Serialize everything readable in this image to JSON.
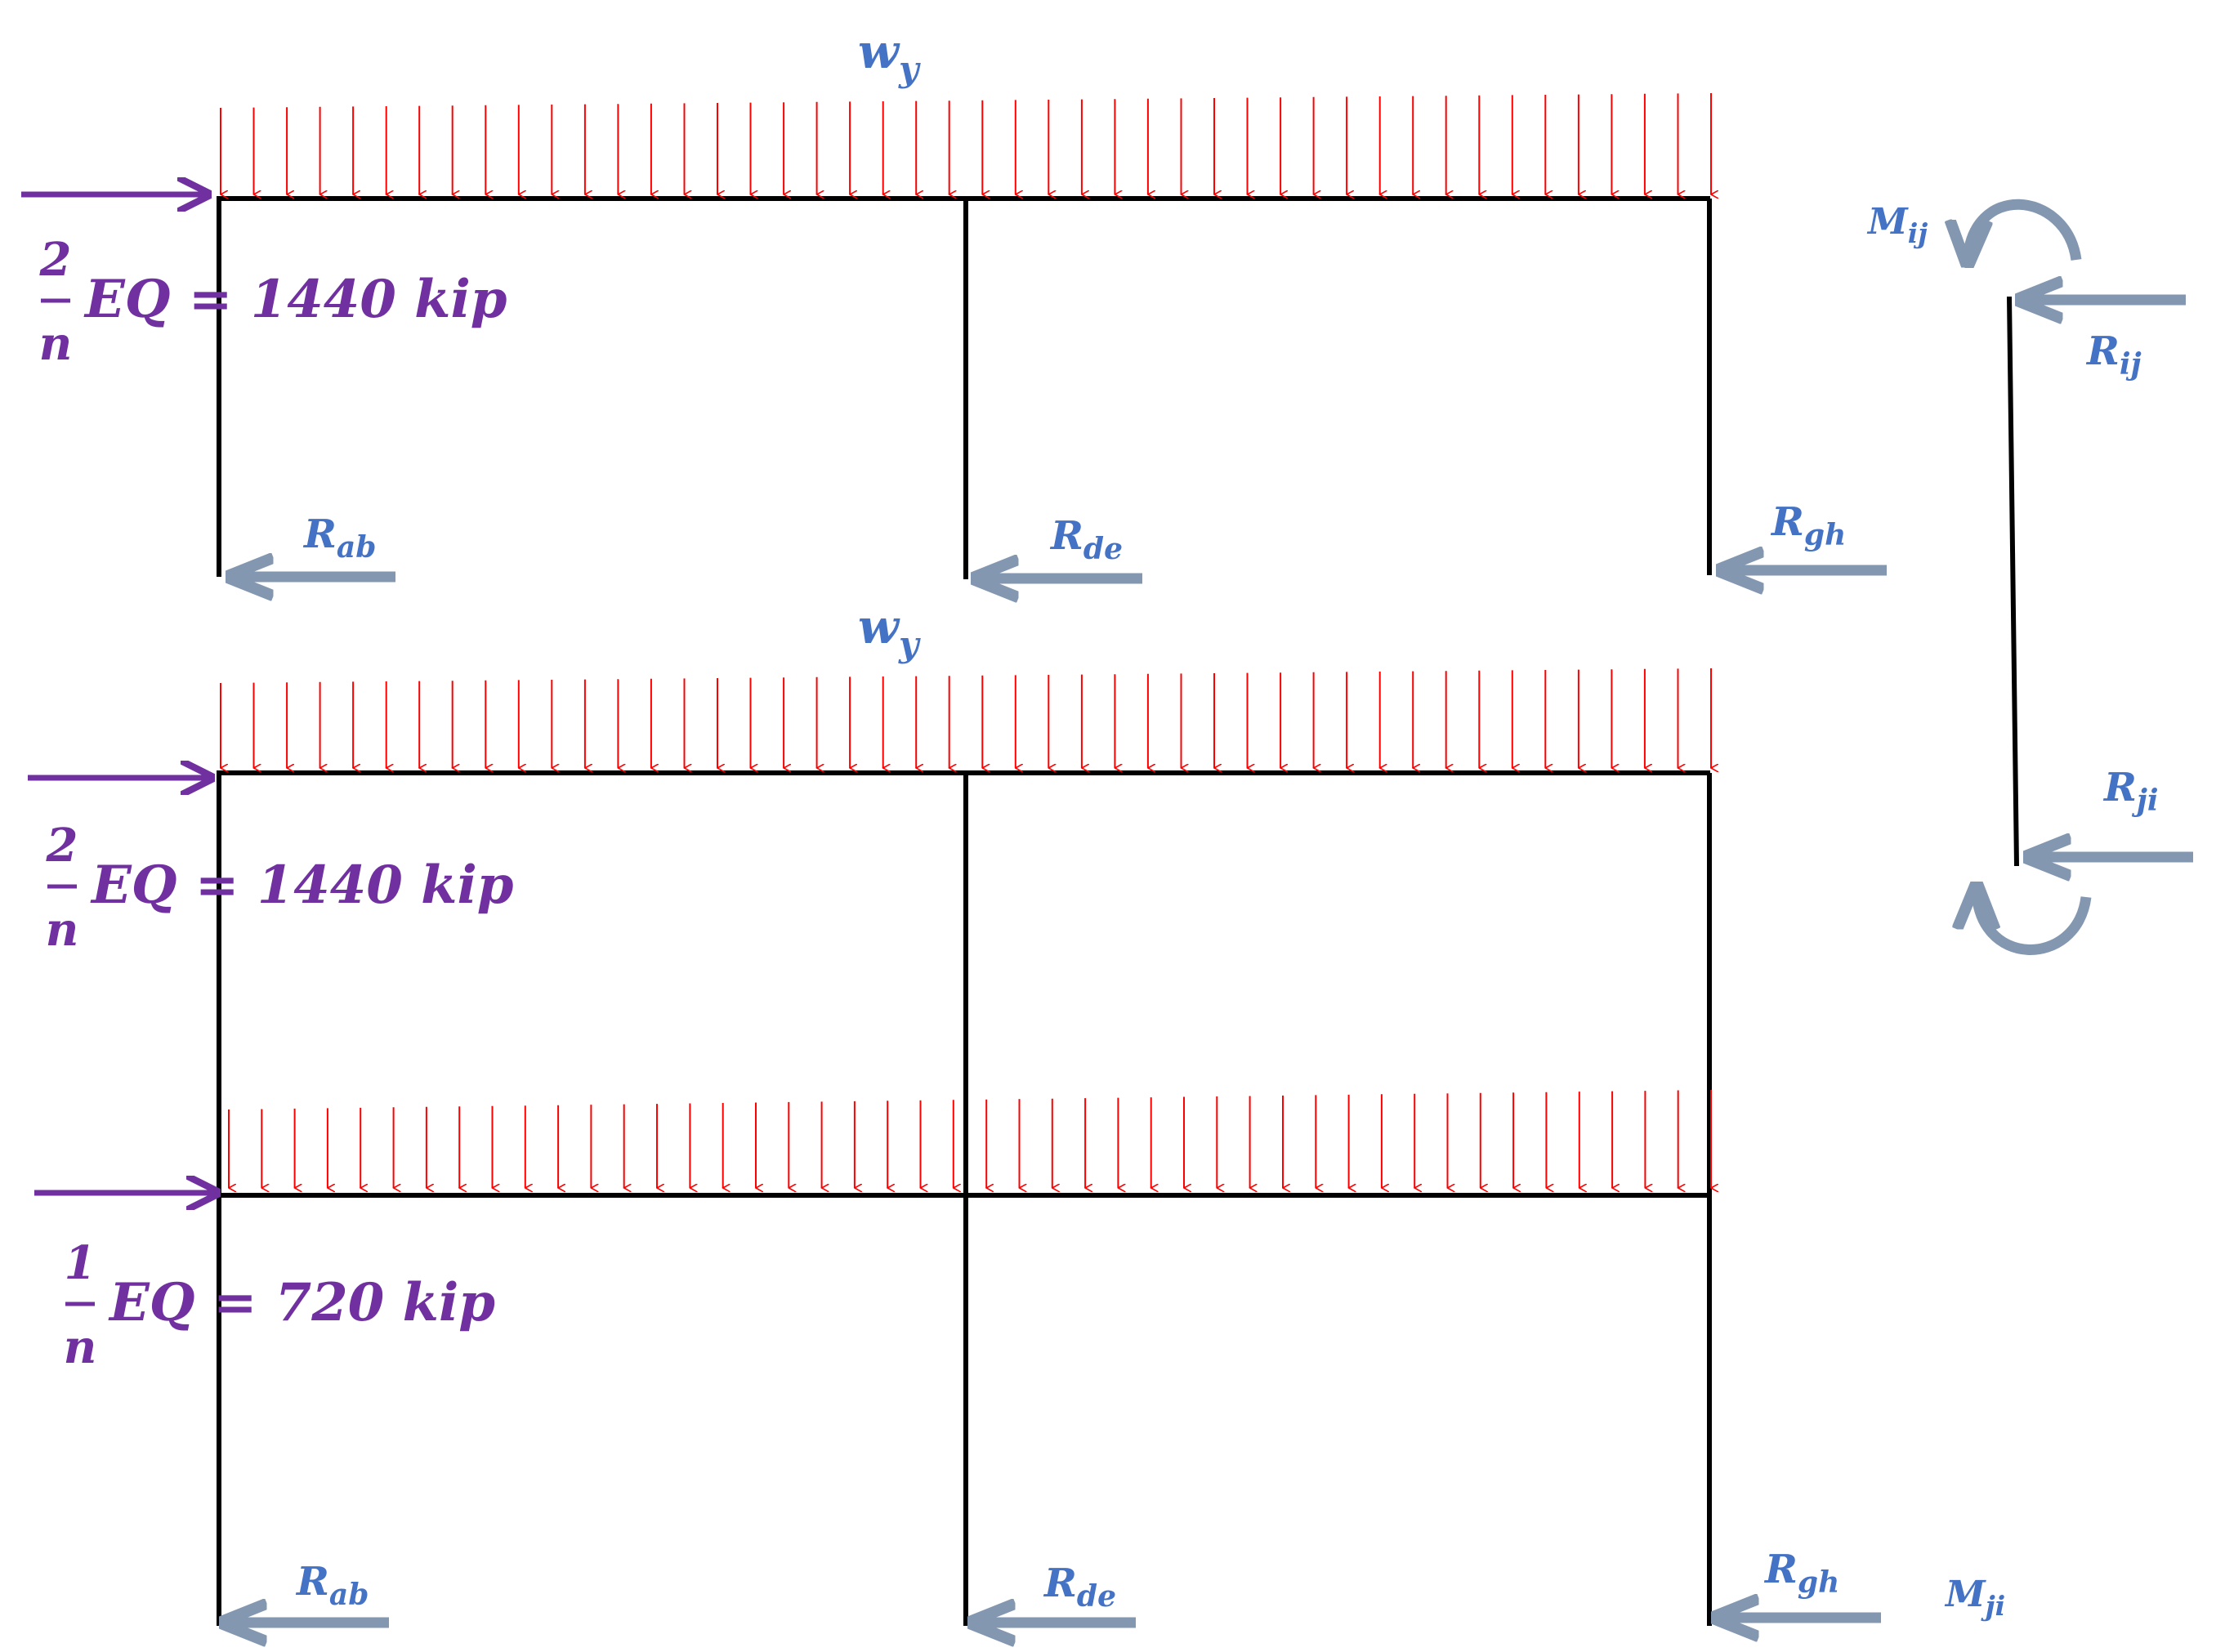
{
  "colors": {
    "frame": "#000000",
    "load_arrow": "#ff0000",
    "lateral_force": "#7030a0",
    "reaction": "#8497b0",
    "label_blue": "#4472c4"
  },
  "distributed_load": {
    "label_base": "w",
    "label_sub": "y"
  },
  "lateral_loads": [
    {
      "num": "2",
      "den": "n",
      "text": "EQ = 1440 kip"
    },
    {
      "num": "2",
      "den": "n",
      "text": "EQ = 1440 kip"
    },
    {
      "num": "1",
      "den": "n",
      "text": "EQ = 720 kip"
    }
  ],
  "reactions_top": [
    {
      "base": "R",
      "sub": "ab"
    },
    {
      "base": "R",
      "sub": "de"
    },
    {
      "base": "R",
      "sub": "gh"
    }
  ],
  "reactions_bottom": [
    {
      "base": "R",
      "sub": "ab"
    },
    {
      "base": "R",
      "sub": "de"
    },
    {
      "base": "R",
      "sub": "gh"
    }
  ],
  "column_fbd": {
    "moment_top": {
      "base": "M",
      "sub": "ij"
    },
    "moment_bottom": {
      "base": "M",
      "sub": "ji"
    },
    "force_top": {
      "base": "R",
      "sub": "ij"
    },
    "force_bottom": {
      "base": "R",
      "sub": "ji"
    }
  }
}
